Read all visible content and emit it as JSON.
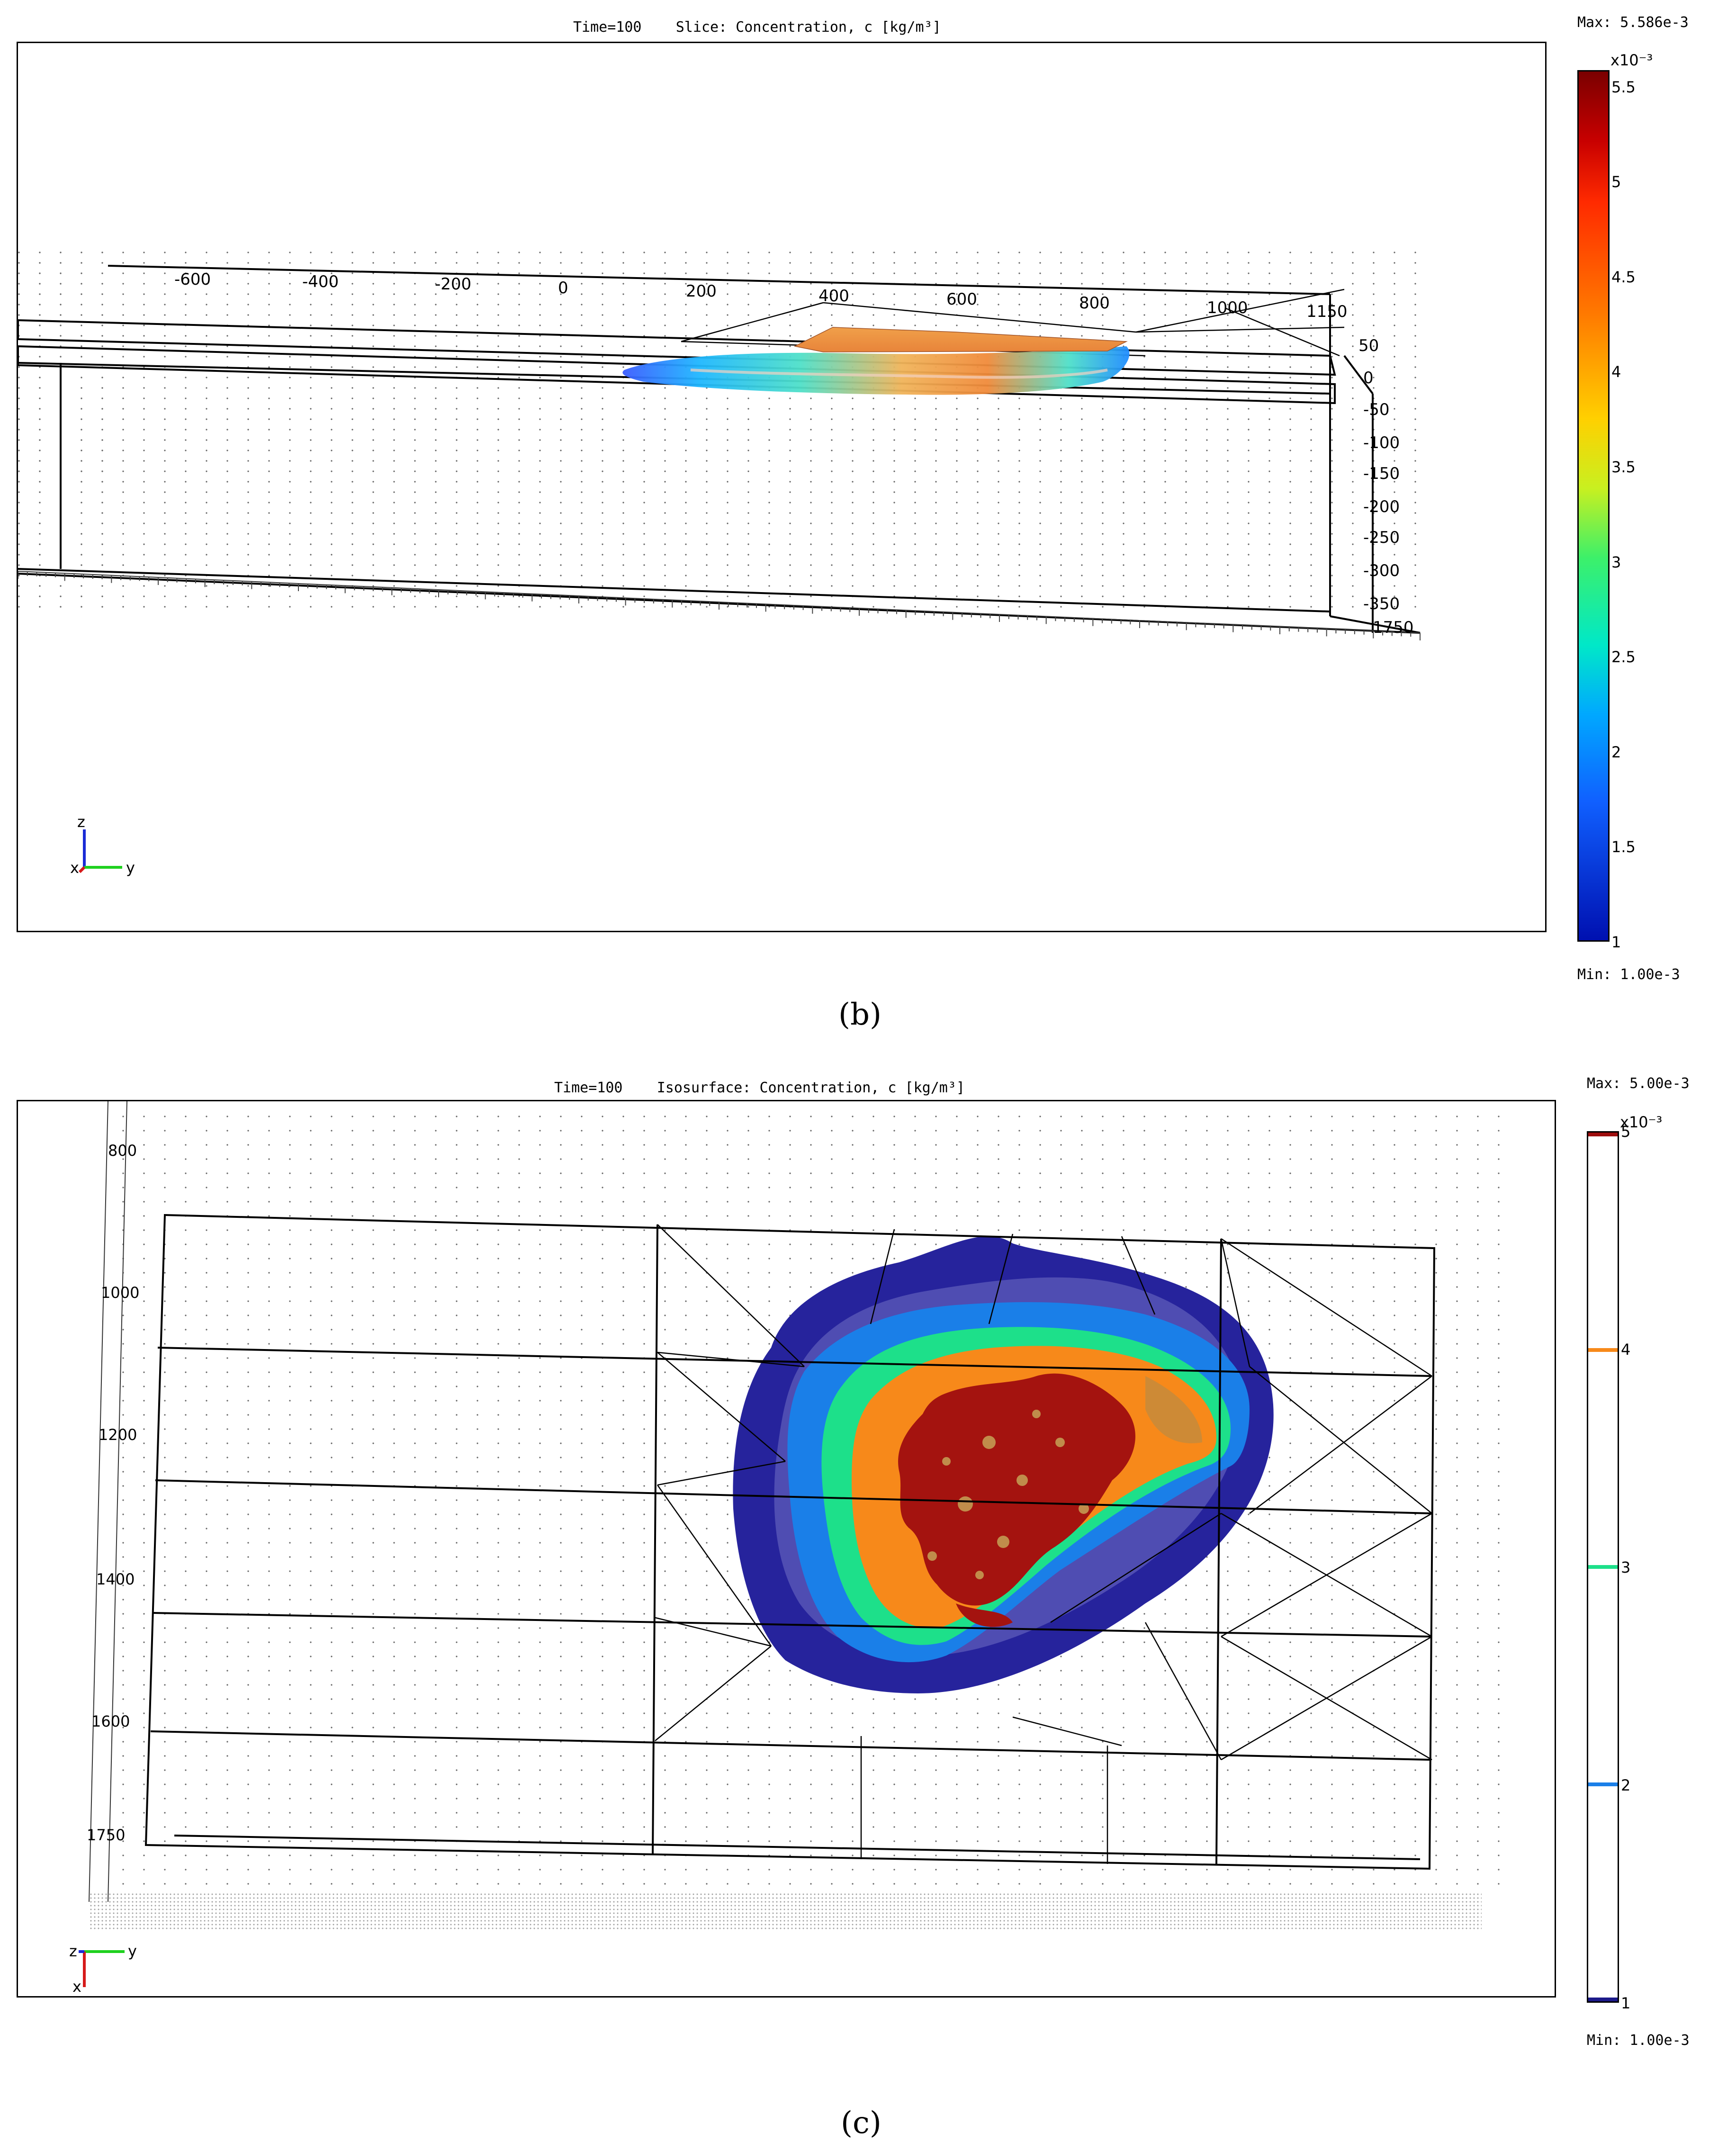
{
  "panel_b": {
    "title": "Time=100    Slice: Concentration, c [kg/m³]",
    "max_label": "Max: 5.586e-3",
    "min_label": "Min: 1.00e-3",
    "caption": "(b)",
    "y_axis_ticks": [
      "-600",
      "-400",
      "-200",
      "0",
      "200",
      "400",
      "600",
      "800",
      "1000",
      "1150"
    ],
    "z_axis_ticks": [
      "50",
      "0",
      "-50",
      "-100",
      "-150",
      "-200",
      "-250",
      "-300",
      "-350"
    ],
    "x_axis_tick": "1750",
    "axis_triad": {
      "up": "z",
      "right": "y",
      "out": "x"
    },
    "colorbar": {
      "exponent": "x10⁻³",
      "ticks": [
        "5.5",
        "5",
        "4.5",
        "4",
        "3.5",
        "3",
        "2.5",
        "2",
        "1.5",
        "1"
      ],
      "min": 1.0,
      "max": 5.586,
      "colormap": "jet"
    }
  },
  "panel_c": {
    "title": "Time=100    Isosurface: Concentration, c [kg/m³]",
    "max_label": "Max: 5.00e-3",
    "min_label": "Min: 1.00e-3",
    "caption": "(c)",
    "x_axis_ticks": [
      "800",
      "1000",
      "1200",
      "1400",
      "1600",
      "1750"
    ],
    "axis_triad": {
      "right": "y",
      "down": "x",
      "out": "z"
    },
    "colorbar": {
      "exponent": "x10⁻³",
      "ticks": [
        "5",
        "4",
        "3",
        "2",
        "1"
      ],
      "min": 1.0,
      "max": 5.0,
      "isolevels": [
        {
          "value": 5,
          "color": "#9e0e0e"
        },
        {
          "value": 4,
          "color": "#f7891a"
        },
        {
          "value": 3,
          "color": "#1de08a"
        },
        {
          "value": 2,
          "color": "#1a7fe8"
        },
        {
          "value": 1,
          "color": "#1c1a8a"
        }
      ]
    }
  }
}
